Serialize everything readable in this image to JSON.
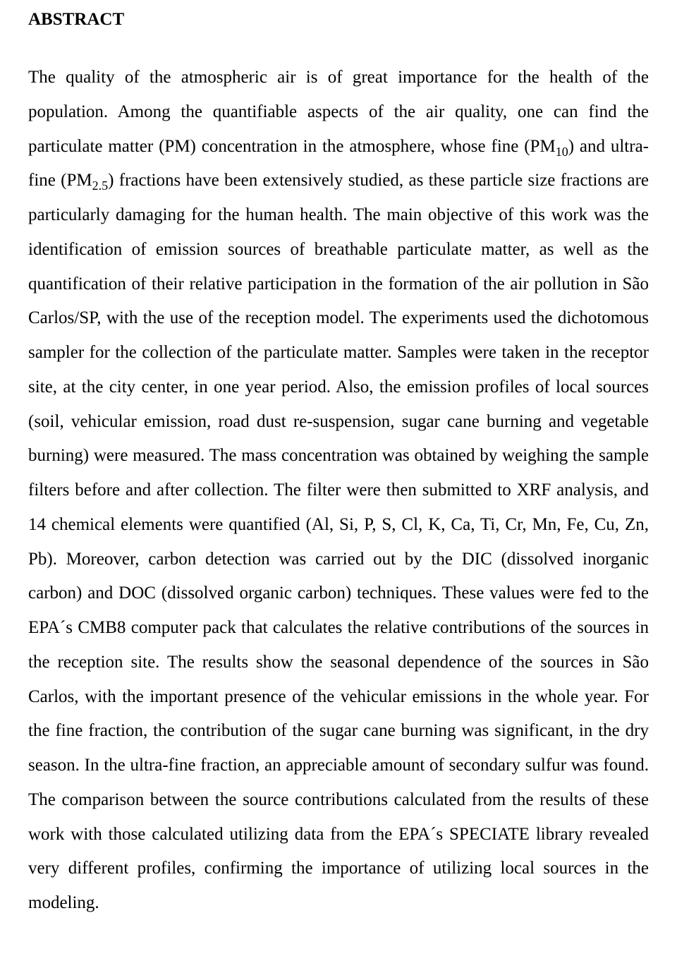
{
  "document": {
    "type": "academic-abstract",
    "background_color": "#ffffff",
    "text_color": "#000000",
    "font_family": "Times New Roman",
    "heading": {
      "text": "ABSTRACT",
      "font_size_pt": 25,
      "font_weight": "bold"
    },
    "body": {
      "font_size_pt": 25,
      "line_height": 1.95,
      "text_align": "justify",
      "paragraphs": [
        {
          "segments": [
            {
              "text": "The quality of the atmospheric air is of great importance for the health of the population. Among the quantifiable aspects of the air quality, one can find the particulate matter (PM) concentration in the atmosphere, whose fine (PM"
            },
            {
              "text": "10",
              "sub": true
            },
            {
              "text": ") and ultra-fine (PM"
            },
            {
              "text": "2.5",
              "sub": true
            },
            {
              "text": ") fractions have been extensively studied, as these particle size fractions are particularly damaging for the human health. The main objective of this work was the identification of emission sources of breathable particulate matter, as well as the quantification of their relative participation in the formation of the air pollution in São Carlos/SP, with the use of the reception model. The experiments used the dichotomous sampler for the collection of the particulate matter. Samples were taken in the receptor site, at the city center, in one year period. Also, the emission profiles of local sources (soil, vehicular emission, road dust re-suspension, sugar cane burning and vegetable burning) were measured. The mass concentration was obtained by weighing the sample filters before and after collection. The filter were then submitted to XRF analysis, and 14 chemical elements were quantified (Al, Si, P, S, Cl, K, Ca, Ti, Cr, Mn, Fe, Cu, Zn, Pb). Moreover, carbon detection was carried out by the DIC (dissolved inorganic carbon) and DOC (dissolved organic carbon) techniques. These values were fed to the EPA´s CMB8 computer pack that calculates the relative contributions of the sources in the reception site. The results show the seasonal dependence of the sources in São Carlos, with the important presence of the vehicular emissions in the whole year. For the fine fraction, the contribution of the sugar cane burning was significant, in the dry season. In the ultra-fine fraction, an appreciable amount of secondary sulfur was found. The comparison between the source contributions calculated from the results of these work with those calculated utilizing data from the EPA´s SPECIATE library revealed very different profiles, confirming the importance of utilizing local sources in the modeling."
            }
          ]
        }
      ]
    }
  }
}
